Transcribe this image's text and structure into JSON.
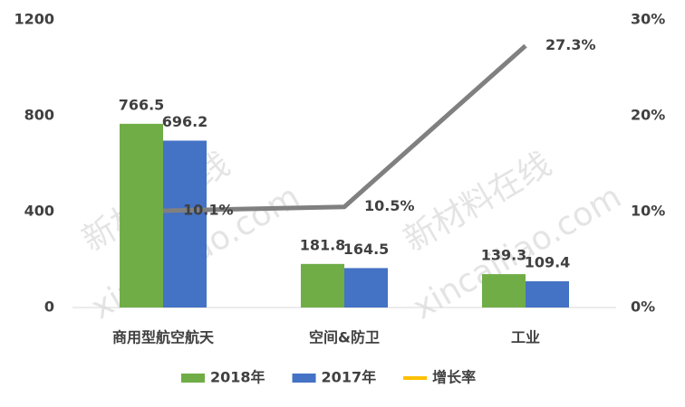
{
  "chart_data": {
    "type": "bar_line",
    "categories": [
      "商用型航空航天",
      "空间&防卫",
      "工业"
    ],
    "series": [
      {
        "name": "2018年",
        "color": "#70ad47",
        "values": [
          766.5,
          181.8,
          139.3
        ]
      },
      {
        "name": "2017年",
        "color": "#4472c4",
        "values": [
          696.2,
          164.5,
          109.4
        ]
      },
      {
        "name": "增长率",
        "color": "#808080",
        "legend_color": "#ffc000",
        "axis": "y2",
        "values": [
          10.1,
          10.5,
          27.3
        ],
        "value_labels": [
          "10.1%",
          "10.5%",
          "27.3%"
        ]
      }
    ],
    "ylim": [
      0,
      1200
    ],
    "yticks": [
      0,
      400,
      800,
      1200
    ],
    "y2lim": [
      0,
      30
    ],
    "y2ticks": [
      {
        "value": 0,
        "label": "0%"
      },
      {
        "value": 10,
        "label": "10%"
      },
      {
        "value": 20,
        "label": "20%"
      },
      {
        "value": 30,
        "label": "30%"
      }
    ],
    "grid": false,
    "legend": "bottom",
    "watermarks": [
      "新材料在线",
      "xincailiao.com",
      "新材料在线",
      "xincailiao.com"
    ]
  }
}
